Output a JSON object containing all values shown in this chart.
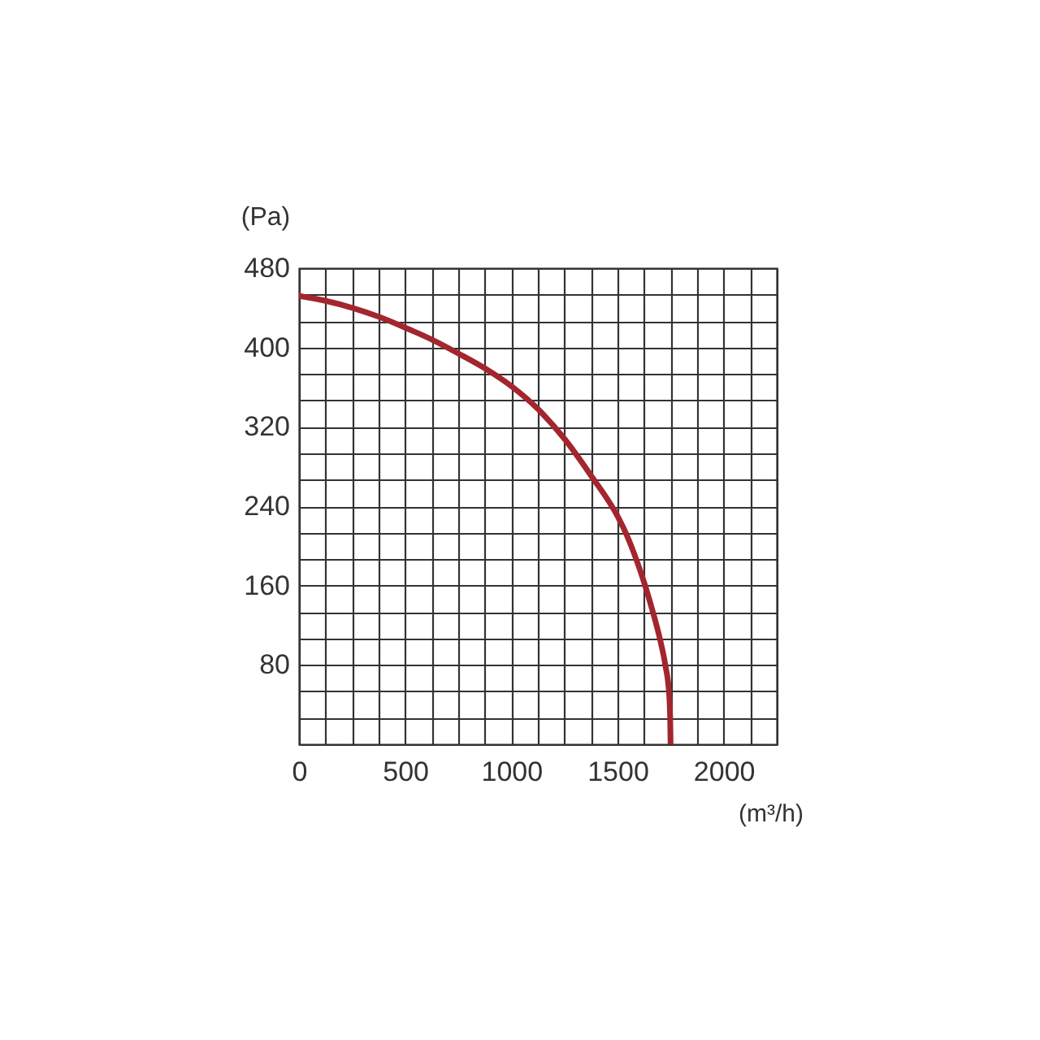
{
  "chart_data": {
    "type": "line",
    "ylabel": "(Pa)",
    "xlabel": "(m³/h)",
    "x": [
      0,
      125,
      250,
      375,
      500,
      625,
      750,
      875,
      1000,
      1125,
      1250,
      1375,
      1500,
      1541,
      1589,
      1630,
      1667,
      1700,
      1725,
      1743,
      1748,
      1750
    ],
    "series": [
      {
        "color": "#a3262e",
        "values": [
          452,
          447,
          440,
          431,
          420,
          408,
          394,
          379,
          361,
          338,
          308,
          271,
          230,
          212,
          186,
          160,
          133,
          106,
          80,
          51,
          25,
          0
        ]
      }
    ],
    "xlim": [
      0,
      2250
    ],
    "ylim": [
      0,
      480
    ],
    "xticks": [
      0,
      {
        "value": 125,
        "label": null
      },
      {
        "value": 250,
        "label": null
      },
      {
        "value": 375,
        "label": null
      },
      500,
      {
        "value": 625,
        "label": null
      },
      {
        "value": 750,
        "label": null
      },
      {
        "value": 875,
        "label": null
      },
      1000,
      {
        "value": 1125,
        "label": null
      },
      {
        "value": 1250,
        "label": null
      },
      {
        "value": 1375,
        "label": null
      },
      1500,
      {
        "value": 1625,
        "label": null
      },
      {
        "value": 1750,
        "label": null
      },
      {
        "value": 1875,
        "label": null
      },
      2000,
      {
        "value": 2125,
        "label": null
      },
      {
        "value": 2250,
        "label": null
      }
    ],
    "yticks": [
      {
        "value": 0,
        "label": null
      },
      {
        "value": 26.67,
        "label": null
      },
      {
        "value": 53.33,
        "label": null
      },
      80,
      {
        "value": 106.67,
        "label": null
      },
      {
        "value": 133.33,
        "label": null
      },
      160,
      {
        "value": 186.67,
        "label": null
      },
      {
        "value": 213.33,
        "label": null
      },
      240,
      {
        "value": 266.67,
        "label": null
      },
      {
        "value": 293.33,
        "label": null
      },
      320,
      {
        "value": 346.67,
        "label": null
      },
      {
        "value": 373.33,
        "label": null
      },
      400,
      {
        "value": 426.67,
        "label": null
      },
      {
        "value": 453.33,
        "label": null
      },
      480
    ],
    "grid": true,
    "line_style": "solid"
  }
}
